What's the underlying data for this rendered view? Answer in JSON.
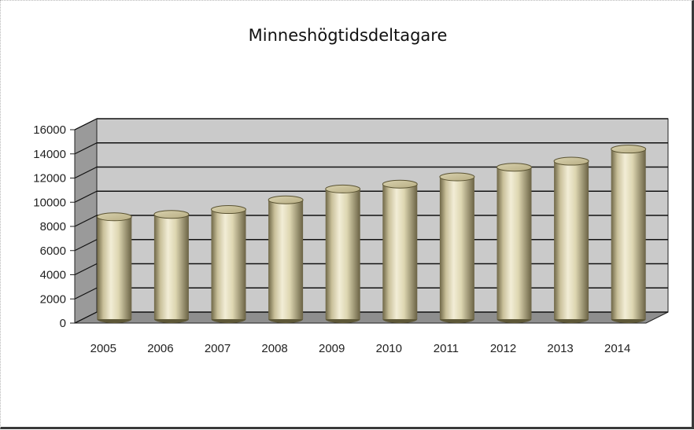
{
  "chart_data": {
    "type": "bar",
    "style": "3d-cylinder",
    "title": "Minneshögtidsdeltagare",
    "categories": [
      "2005",
      "2006",
      "2007",
      "2008",
      "2009",
      "2010",
      "2011",
      "2012",
      "2013",
      "2014"
    ],
    "series": [
      {
        "values": [
          8600,
          8800,
          9200,
          10000,
          10900,
          11300,
          11900,
          12700,
          13200,
          14200
        ]
      }
    ],
    "y_ticks": [
      "0",
      "2000",
      "4000",
      "6000",
      "8000",
      "10000",
      "12000",
      "14000",
      "16000"
    ],
    "ylim": [
      0,
      16000
    ],
    "grid": true,
    "legend": "none",
    "colors": {
      "bar": "#e2dcb8",
      "back_wall": "#cacaca",
      "side_wall": "#9a9a9a",
      "floor": "#8e8e8e",
      "grid": "#111111"
    }
  }
}
